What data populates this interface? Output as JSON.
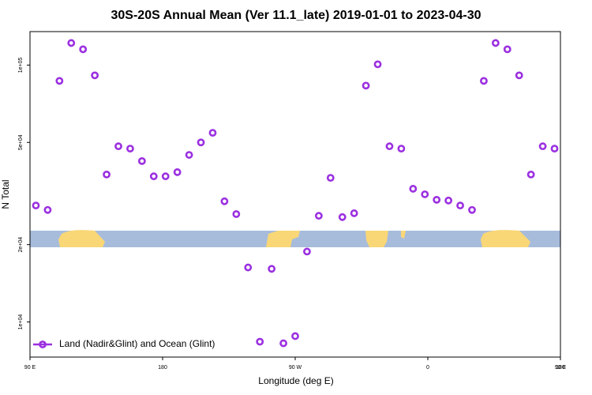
{
  "chart_data": {
    "type": "scatter",
    "title": "30S-20S Annual Mean (Ver 11.1_late)   2019-01-01 to 2023-04-30",
    "x_label": "Longitude (deg E)",
    "y_label": "N Total",
    "log_y": true,
    "legend": "lower left",
    "xlim": [
      90,
      450
    ],
    "xticks": [
      {
        "value": 90,
        "label": "90 E"
      },
      180,
      {
        "value": 270,
        "label": "90 W"
      },
      {
        "value": 360,
        "label": "0"
      },
      {
        "value": 450,
        "label": "90 E"
      },
      {
        "value": 540,
        "label": "180"
      }
    ],
    "ylim": [
      7300,
      135000
    ],
    "yticks": [
      {
        "value": 10000,
        "label": "1e+04"
      },
      {
        "value": 20000,
        "label": "2e+04"
      },
      {
        "value": 50000,
        "label": "5e+04"
      },
      {
        "value": 100000,
        "label": "1e+05"
      }
    ],
    "series": [
      {
        "name": "Land (Nadir&Glint) and Ocean (Glint)",
        "color": "#9b30e0",
        "x": [
          94,
          102,
          110,
          118,
          126,
          134,
          142,
          150,
          158,
          166,
          174,
          182,
          190,
          198,
          206,
          214,
          222,
          230,
          238,
          246,
          254,
          262,
          270,
          278,
          286,
          294,
          302,
          310,
          318,
          326,
          334,
          342,
          350,
          358,
          366,
          374,
          382,
          390,
          398,
          406,
          414,
          422,
          430,
          438,
          446
        ],
        "values": [
          28400,
          27300,
          86800,
          121900,
          115200,
          91200,
          37500,
          48300,
          47300,
          42300,
          36900,
          36900,
          38300,
          44700,
          50000,
          54500,
          29500,
          26300,
          16300,
          8380,
          16100,
          8260,
          8810,
          18800,
          25900,
          36400,
          25600,
          26500,
          83200,
          100700,
          48300,
          47300,
          33000,
          31400,
          29900,
          29700,
          28400,
          27300,
          86800,
          121900,
          115200,
          91200,
          37500,
          48300,
          47300
        ]
      }
    ]
  }
}
